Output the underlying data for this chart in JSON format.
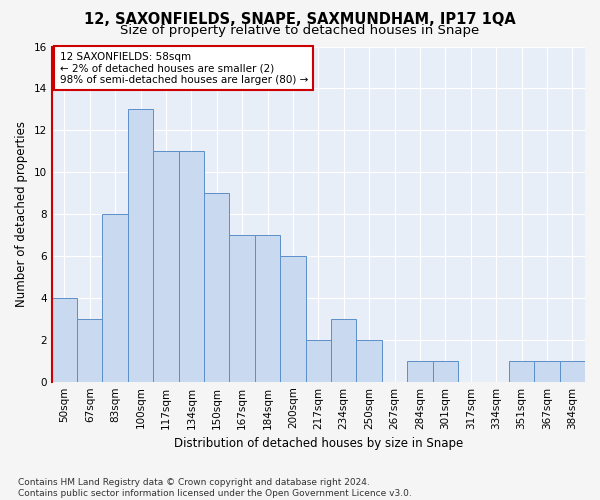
{
  "title": "12, SAXONFIELDS, SNAPE, SAXMUNDHAM, IP17 1QA",
  "subtitle": "Size of property relative to detached houses in Snape",
  "xlabel": "Distribution of detached houses by size in Snape",
  "ylabel": "Number of detached properties",
  "bar_values": [
    4,
    3,
    8,
    13,
    11,
    11,
    9,
    7,
    7,
    6,
    2,
    3,
    2,
    0,
    1,
    1,
    0,
    0,
    1,
    1,
    1
  ],
  "bar_labels": [
    "50sqm",
    "67sqm",
    "83sqm",
    "100sqm",
    "117sqm",
    "134sqm",
    "150sqm",
    "167sqm",
    "184sqm",
    "200sqm",
    "217sqm",
    "234sqm",
    "250sqm",
    "267sqm",
    "284sqm",
    "301sqm",
    "317sqm",
    "334sqm",
    "351sqm",
    "367sqm",
    "384sqm"
  ],
  "bar_color": "#c9d9f0",
  "bar_edge_color": "#5b8fc9",
  "background_color": "#e8eef8",
  "fig_background_color": "#f5f5f5",
  "annotation_text": "12 SAXONFIELDS: 58sqm\n← 2% of detached houses are smaller (2)\n98% of semi-detached houses are larger (80) →",
  "annotation_box_color": "#ffffff",
  "annotation_box_edge_color": "#cc0000",
  "ylim": [
    0,
    16
  ],
  "yticks": [
    0,
    2,
    4,
    6,
    8,
    10,
    12,
    14,
    16
  ],
  "footer_text": "Contains HM Land Registry data © Crown copyright and database right 2024.\nContains public sector information licensed under the Open Government Licence v3.0.",
  "grid_color": "#ffffff",
  "title_fontsize": 10.5,
  "subtitle_fontsize": 9.5,
  "axis_label_fontsize": 8.5,
  "tick_fontsize": 7.5,
  "annotation_fontsize": 7.5,
  "footer_fontsize": 6.5
}
